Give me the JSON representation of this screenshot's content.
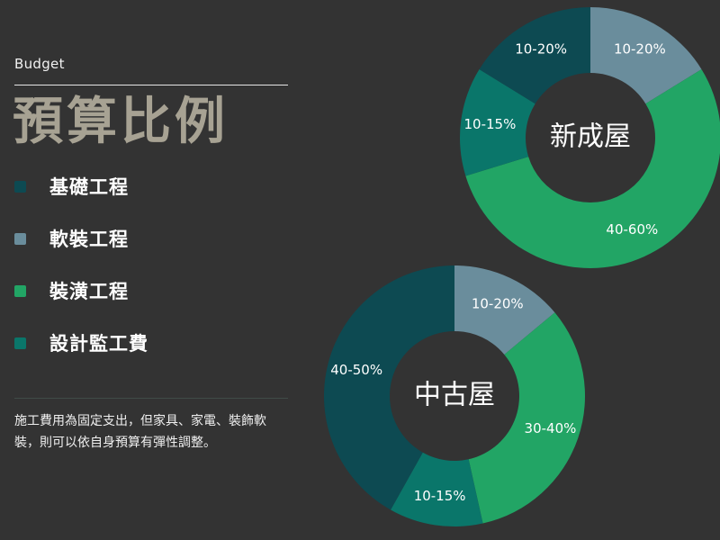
{
  "header": {
    "subtitle": "Budget",
    "title": "預算比例"
  },
  "legend": [
    {
      "label": "基礎工程",
      "color": "#0d4a52"
    },
    {
      "label": "軟裝工程",
      "color": "#6a8d9c"
    },
    {
      "label": "裝潢工程",
      "color": "#22a565"
    },
    {
      "label": "設計監工費",
      "color": "#0a766a"
    }
  ],
  "note": "施工費用為固定支出，但家具、家電、裝飾軟裝，則可以依自身預算有彈性調整。",
  "chart_data": [
    {
      "type": "donut",
      "center_label": "新成屋",
      "slices": [
        {
          "category": "軟裝工程",
          "label": "10-20%",
          "value": 15,
          "color": "#6a8d9c"
        },
        {
          "category": "裝潢工程",
          "label": "40-60%",
          "value": 50,
          "color": "#22a565"
        },
        {
          "category": "設計監工費",
          "label": "10-15%",
          "value": 12.5,
          "color": "#0a766a"
        },
        {
          "category": "基礎工程",
          "label": "10-20%",
          "value": 15,
          "color": "#0d4a52"
        }
      ]
    },
    {
      "type": "donut",
      "center_label": "中古屋",
      "slices": [
        {
          "category": "軟裝工程",
          "label": "10-20%",
          "value": 15,
          "color": "#6a8d9c"
        },
        {
          "category": "裝潢工程",
          "label": "30-40%",
          "value": 35,
          "color": "#22a565"
        },
        {
          "category": "設計監工費",
          "label": "10-15%",
          "value": 12.5,
          "color": "#0a766a"
        },
        {
          "category": "基礎工程",
          "label": "40-50%",
          "value": 45,
          "color": "#0d4a52"
        }
      ]
    }
  ]
}
